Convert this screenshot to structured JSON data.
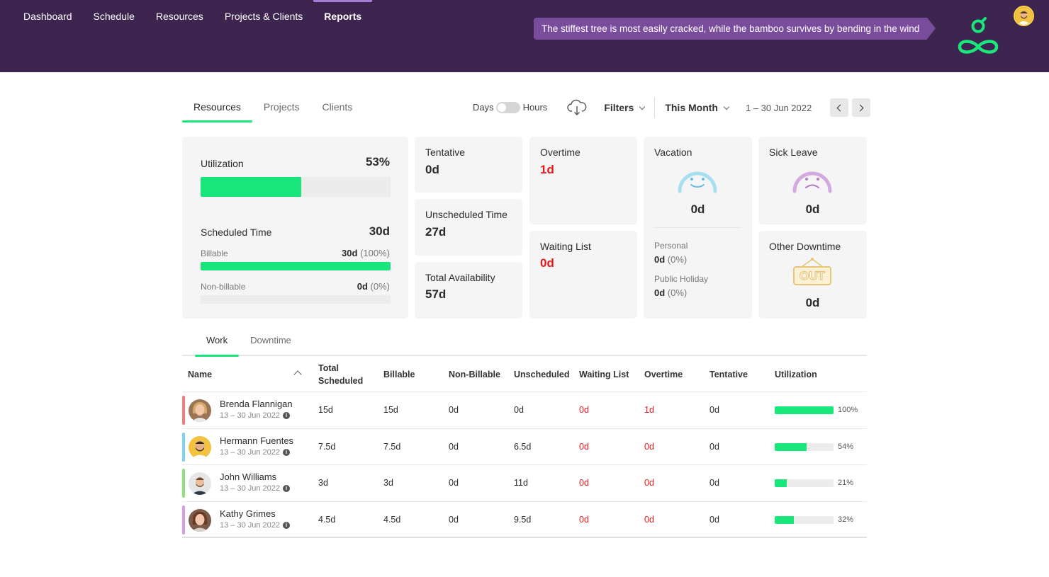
{
  "nav": {
    "items": [
      {
        "label": "Dashboard"
      },
      {
        "label": "Schedule"
      },
      {
        "label": "Resources"
      },
      {
        "label": "Projects & Clients"
      },
      {
        "label": "Reports",
        "active": true
      }
    ]
  },
  "quote": "The stiffest tree is most easily cracked, while the bamboo survives by bending in the wind",
  "colors": {
    "topbar": "#3e2550",
    "accent": "#19e77c",
    "quote_bg": "#7a4d9c",
    "negative": "#e5191b"
  },
  "icons": {
    "logo": "infinity-logo-icon",
    "cloud": "cloud-download-icon",
    "vacation": "smiley-face-icon",
    "sick": "sad-face-icon",
    "other": "out-sign-icon",
    "info": "info-icon"
  },
  "subtabs": [
    {
      "label": "Resources",
      "active": true
    },
    {
      "label": "Projects"
    },
    {
      "label": "Clients"
    }
  ],
  "toolbar": {
    "days_label": "Days",
    "hours_label": "Hours",
    "filters_label": "Filters",
    "period_label": "This Month",
    "date_range": "1 – 30 Jun 2022"
  },
  "cards": {
    "utilization": {
      "label": "Utilization",
      "value": "53%",
      "fraction": 0.53
    },
    "scheduled": {
      "label": "Scheduled Time",
      "value": "30d",
      "billable_label": "Billable",
      "billable_value": "30d",
      "billable_pct": "(100%)",
      "billable_fraction": 1.0,
      "nonbillable_label": "Non-billable",
      "nonbillable_value": "0d",
      "nonbillable_pct": "(0%)",
      "nonbillable_fraction": 0.0
    },
    "tentative": {
      "label": "Tentative",
      "value": "0d"
    },
    "unscheduled": {
      "label": "Unscheduled Time",
      "value": "27d"
    },
    "availability": {
      "label": "Total Availability",
      "value": "57d"
    },
    "overtime": {
      "label": "Overtime",
      "value": "1d"
    },
    "waiting": {
      "label": "Waiting List",
      "value": "0d"
    },
    "vacation": {
      "label": "Vacation",
      "value": "0d",
      "personal_label": "Personal",
      "personal_value": "0d",
      "personal_pct": "(0%)",
      "holiday_label": "Public Holiday",
      "holiday_value": "0d",
      "holiday_pct": "(0%)"
    },
    "sick": {
      "label": "Sick Leave",
      "value": "0d"
    },
    "other": {
      "label": "Other Downtime",
      "value": "0d",
      "sign_text": "OUT"
    }
  },
  "bottabs": [
    {
      "label": "Work",
      "active": true
    },
    {
      "label": "Downtime"
    }
  ],
  "table": {
    "headers": {
      "name": "Name",
      "total_scheduled": "Total Scheduled",
      "billable": "Billable",
      "non_billable": "Non-Billable",
      "unscheduled": "Unscheduled",
      "waiting": "Waiting List",
      "overtime": "Overtime",
      "tentative": "Tentative",
      "utilization": "Utilization"
    },
    "rows": [
      {
        "name": "Brenda Flannigan",
        "date": "13 – 30 Jun 2022",
        "total": "15d",
        "billable": "15d",
        "non_billable": "0d",
        "unscheduled": "0d",
        "waiting": "0d",
        "overtime": "1d",
        "tentative": "0d",
        "utilization": "100%",
        "util_fraction": 1.0,
        "stripe": "#f27b7b"
      },
      {
        "name": "Hermann Fuentes",
        "date": "13 – 30 Jun 2022",
        "total": "7.5d",
        "billable": "7.5d",
        "non_billable": "0d",
        "unscheduled": "6.5d",
        "waiting": "0d",
        "overtime": "0d",
        "tentative": "0d",
        "utilization": "54%",
        "util_fraction": 0.54,
        "stripe": "#7dd3f0"
      },
      {
        "name": "John Williams",
        "date": "13 – 30 Jun 2022",
        "total": "3d",
        "billable": "3d",
        "non_billable": "0d",
        "unscheduled": "11d",
        "waiting": "0d",
        "overtime": "0d",
        "tentative": "0d",
        "utilization": "21%",
        "util_fraction": 0.21,
        "stripe": "#8de27a"
      },
      {
        "name": "Kathy Grimes",
        "date": "13 – 30 Jun 2022",
        "total": "4.5d",
        "billable": "4.5d",
        "non_billable": "0d",
        "unscheduled": "9.5d",
        "waiting": "0d",
        "overtime": "0d",
        "tentative": "0d",
        "utilization": "32%",
        "util_fraction": 0.32,
        "stripe": "#d99be8"
      }
    ]
  }
}
